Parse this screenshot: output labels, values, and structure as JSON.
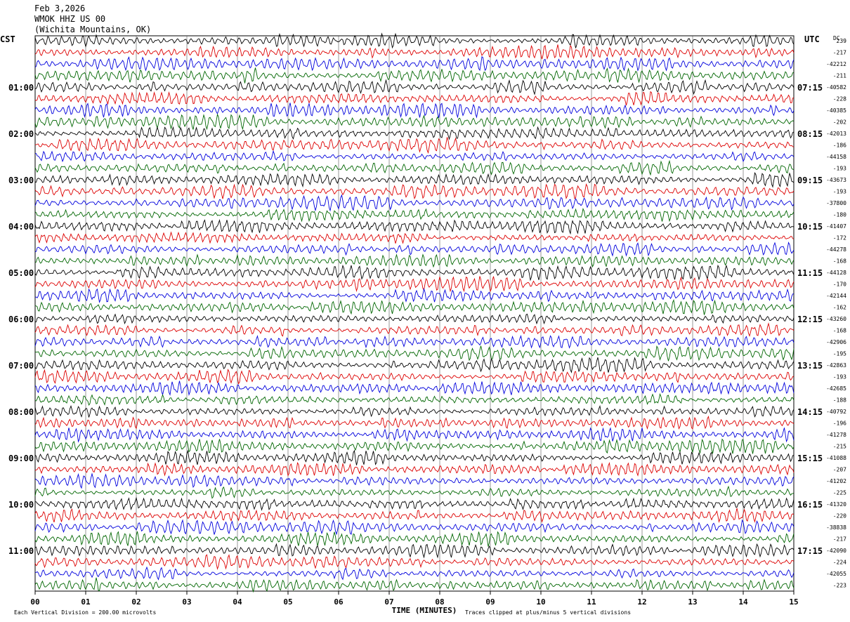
{
  "header": {
    "date": "Feb 3,2026",
    "station": "WMOK HHZ US 00",
    "location": "(Wichita Mountains, OK)"
  },
  "labels": {
    "left_zone": "CST",
    "right_zone": "UTC",
    "dc": "DC"
  },
  "footer": {
    "division": "Each Vertical Division =  200.00 microvolts",
    "clip": "Traces clipped at plus/minus 5 vertical divisions"
  },
  "chart_data": {
    "type": "line",
    "title": "",
    "xlabel": "TIME (MINUTES)",
    "ylabel": "",
    "xlim": [
      0,
      15
    ],
    "x_ticks": [
      "00",
      "01",
      "02",
      "03",
      "04",
      "05",
      "06",
      "07",
      "08",
      "09",
      "10",
      "11",
      "12",
      "13",
      "14",
      "15"
    ],
    "trace_colors": [
      "#000000",
      "#dd0000",
      "#0000dd",
      "#006600"
    ],
    "left_time_labels": [
      "01:00",
      "02:00",
      "03:00",
      "04:00",
      "05:00",
      "06:00",
      "07:00",
      "08:00",
      "09:00",
      "10:00",
      "11:00"
    ],
    "right_time_labels": [
      "07:15",
      "08:15",
      "09:15",
      "10:15",
      "11:15",
      "12:15",
      "13:15",
      "14:15",
      "15:15",
      "16:15",
      "17:15"
    ],
    "dc_offsets": [
      "239",
      "-217",
      "-42212",
      "-211",
      "-40582",
      "-228",
      "-40385",
      "-202",
      "-42013",
      "-186",
      "-44158",
      "-193",
      "-43673",
      "-193",
      "-37800",
      "-180",
      "-41407",
      "-172",
      "-44278",
      "-168",
      "-44128",
      "-170",
      "-42144",
      "-162",
      "-43260",
      "-168",
      "-42906",
      "-195",
      "-42863",
      "-193",
      "-42685",
      "-188",
      "-40792",
      "-196",
      "-41278",
      "-215",
      "-41088",
      "-207",
      "-41202",
      "-225",
      "-41320",
      "-220",
      "-38838",
      "-217",
      "-42090",
      "-224",
      "-42055",
      "-223"
    ]
  }
}
